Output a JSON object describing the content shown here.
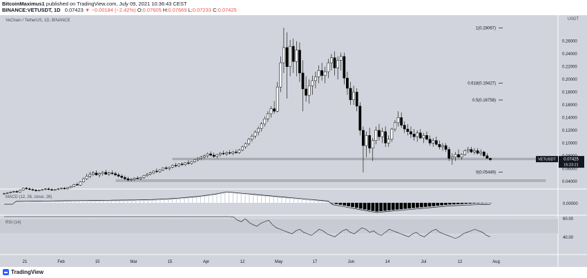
{
  "header": {
    "author": "BitcoinMaximus1",
    "published": "published on TradingView.com, July 09, 2021 10:36:43 CEST",
    "symbol": "BINANCE:VETUSDT, 1D",
    "price": "0.07423",
    "change": "▼ −0.00184 (−2.42%)",
    "o_label": "O:",
    "o": "0.07605",
    "h_label": "H:",
    "h": "0.07669",
    "l_label": "L:",
    "l": "0.07233",
    "c_label": "C:",
    "c": "0.07425"
  },
  "footer": {
    "logo_text": "TradingView"
  },
  "colors": {
    "background": "#d1d4dc",
    "candle_up": "#ffffff",
    "candle_down": "#000000",
    "support": "#b0b3ba"
  },
  "chart_data": {
    "type": "candlestick",
    "title": "VeChain / TetherUS, 1D, BINANCE",
    "unit_label": "USDT",
    "x_ticks": [
      "21",
      "Feb",
      "15",
      "Mar",
      "15",
      "Apr",
      "12",
      "May",
      "17",
      "Jun",
      "14",
      "Jul",
      "12",
      "Aug"
    ],
    "y_ticks": [
      "0.26000",
      "0.24000",
      "0.22000",
      "0.20000",
      "0.18000",
      "0.16000",
      "0.14000",
      "0.12000",
      "0.10000",
      "0.08000",
      "0.06000",
      "0.04000"
    ],
    "ylim": [
      0.03,
      0.29
    ],
    "fib_levels": [
      {
        "label": "1(0.28067)",
        "value": 0.28067
      },
      {
        "label": "0.618(0.19427)",
        "value": 0.19427
      },
      {
        "label": "0.5(0.16758)",
        "value": 0.16758
      },
      {
        "label": "0(0.05449)",
        "value": 0.05449
      }
    ],
    "support_zones": [
      [
        0.0735,
        0.0765
      ],
      [
        0.0395,
        0.0425
      ]
    ],
    "last_price": {
      "symbol": "VETUSDT",
      "value": "0.07425",
      "countdown": "15:23:21"
    },
    "candles": [
      {
        "o": 0.02,
        "h": 0.022,
        "l": 0.019,
        "c": 0.021
      },
      {
        "o": 0.021,
        "h": 0.023,
        "l": 0.02,
        "c": 0.022
      },
      {
        "o": 0.022,
        "h": 0.024,
        "l": 0.021,
        "c": 0.023
      },
      {
        "o": 0.023,
        "h": 0.025,
        "l": 0.022,
        "c": 0.024
      },
      {
        "o": 0.024,
        "h": 0.026,
        "l": 0.022,
        "c": 0.023
      },
      {
        "o": 0.023,
        "h": 0.027,
        "l": 0.022,
        "c": 0.026
      },
      {
        "o": 0.026,
        "h": 0.03,
        "l": 0.025,
        "c": 0.029
      },
      {
        "o": 0.029,
        "h": 0.031,
        "l": 0.027,
        "c": 0.028
      },
      {
        "o": 0.028,
        "h": 0.03,
        "l": 0.026,
        "c": 0.027
      },
      {
        "o": 0.027,
        "h": 0.029,
        "l": 0.025,
        "c": 0.026
      },
      {
        "o": 0.026,
        "h": 0.028,
        "l": 0.024,
        "c": 0.025
      },
      {
        "o": 0.025,
        "h": 0.027,
        "l": 0.024,
        "c": 0.026
      },
      {
        "o": 0.026,
        "h": 0.028,
        "l": 0.025,
        "c": 0.027
      },
      {
        "o": 0.027,
        "h": 0.029,
        "l": 0.026,
        "c": 0.028
      },
      {
        "o": 0.028,
        "h": 0.03,
        "l": 0.026,
        "c": 0.027
      },
      {
        "o": 0.027,
        "h": 0.029,
        "l": 0.025,
        "c": 0.026
      },
      {
        "o": 0.026,
        "h": 0.028,
        "l": 0.025,
        "c": 0.027
      },
      {
        "o": 0.027,
        "h": 0.029,
        "l": 0.026,
        "c": 0.028
      },
      {
        "o": 0.028,
        "h": 0.03,
        "l": 0.027,
        "c": 0.029
      },
      {
        "o": 0.029,
        "h": 0.031,
        "l": 0.027,
        "c": 0.028
      },
      {
        "o": 0.028,
        "h": 0.031,
        "l": 0.027,
        "c": 0.03
      },
      {
        "o": 0.03,
        "h": 0.033,
        "l": 0.029,
        "c": 0.032
      },
      {
        "o": 0.032,
        "h": 0.036,
        "l": 0.031,
        "c": 0.035
      },
      {
        "o": 0.035,
        "h": 0.038,
        "l": 0.033,
        "c": 0.034
      },
      {
        "o": 0.034,
        "h": 0.04,
        "l": 0.033,
        "c": 0.039
      },
      {
        "o": 0.039,
        "h": 0.046,
        "l": 0.038,
        "c": 0.044
      },
      {
        "o": 0.044,
        "h": 0.052,
        "l": 0.042,
        "c": 0.048
      },
      {
        "o": 0.048,
        "h": 0.055,
        "l": 0.045,
        "c": 0.051
      },
      {
        "o": 0.051,
        "h": 0.056,
        "l": 0.048,
        "c": 0.053
      },
      {
        "o": 0.053,
        "h": 0.057,
        "l": 0.049,
        "c": 0.05
      },
      {
        "o": 0.05,
        "h": 0.054,
        "l": 0.046,
        "c": 0.052
      },
      {
        "o": 0.052,
        "h": 0.056,
        "l": 0.049,
        "c": 0.054
      },
      {
        "o": 0.054,
        "h": 0.058,
        "l": 0.05,
        "c": 0.051
      },
      {
        "o": 0.051,
        "h": 0.055,
        "l": 0.048,
        "c": 0.053
      },
      {
        "o": 0.053,
        "h": 0.057,
        "l": 0.05,
        "c": 0.052
      },
      {
        "o": 0.052,
        "h": 0.055,
        "l": 0.048,
        "c": 0.05
      },
      {
        "o": 0.05,
        "h": 0.053,
        "l": 0.046,
        "c": 0.048
      },
      {
        "o": 0.048,
        "h": 0.051,
        "l": 0.044,
        "c": 0.046
      },
      {
        "o": 0.046,
        "h": 0.049,
        "l": 0.042,
        "c": 0.044
      },
      {
        "o": 0.044,
        "h": 0.047,
        "l": 0.04,
        "c": 0.042
      },
      {
        "o": 0.042,
        "h": 0.045,
        "l": 0.04,
        "c": 0.043
      },
      {
        "o": 0.043,
        "h": 0.046,
        "l": 0.041,
        "c": 0.045
      },
      {
        "o": 0.045,
        "h": 0.048,
        "l": 0.043,
        "c": 0.044
      },
      {
        "o": 0.044,
        "h": 0.047,
        "l": 0.042,
        "c": 0.046
      },
      {
        "o": 0.046,
        "h": 0.05,
        "l": 0.044,
        "c": 0.049
      },
      {
        "o": 0.049,
        "h": 0.053,
        "l": 0.047,
        "c": 0.051
      },
      {
        "o": 0.051,
        "h": 0.055,
        "l": 0.049,
        "c": 0.053
      },
      {
        "o": 0.053,
        "h": 0.057,
        "l": 0.051,
        "c": 0.056
      },
      {
        "o": 0.056,
        "h": 0.06,
        "l": 0.053,
        "c": 0.055
      },
      {
        "o": 0.055,
        "h": 0.059,
        "l": 0.053,
        "c": 0.058
      },
      {
        "o": 0.058,
        "h": 0.062,
        "l": 0.056,
        "c": 0.061
      },
      {
        "o": 0.061,
        "h": 0.064,
        "l": 0.058,
        "c": 0.06
      },
      {
        "o": 0.06,
        "h": 0.063,
        "l": 0.057,
        "c": 0.062
      },
      {
        "o": 0.062,
        "h": 0.066,
        "l": 0.06,
        "c": 0.065
      },
      {
        "o": 0.065,
        "h": 0.069,
        "l": 0.062,
        "c": 0.064
      },
      {
        "o": 0.064,
        "h": 0.068,
        "l": 0.062,
        "c": 0.067
      },
      {
        "o": 0.067,
        "h": 0.07,
        "l": 0.064,
        "c": 0.066
      },
      {
        "o": 0.066,
        "h": 0.07,
        "l": 0.064,
        "c": 0.069
      },
      {
        "o": 0.069,
        "h": 0.073,
        "l": 0.066,
        "c": 0.068
      },
      {
        "o": 0.068,
        "h": 0.072,
        "l": 0.066,
        "c": 0.071
      },
      {
        "o": 0.071,
        "h": 0.075,
        "l": 0.069,
        "c": 0.074
      },
      {
        "o": 0.074,
        "h": 0.078,
        "l": 0.071,
        "c": 0.076
      },
      {
        "o": 0.076,
        "h": 0.08,
        "l": 0.073,
        "c": 0.078
      },
      {
        "o": 0.078,
        "h": 0.082,
        "l": 0.075,
        "c": 0.08
      },
      {
        "o": 0.08,
        "h": 0.085,
        "l": 0.077,
        "c": 0.083
      },
      {
        "o": 0.083,
        "h": 0.087,
        "l": 0.079,
        "c": 0.081
      },
      {
        "o": 0.081,
        "h": 0.085,
        "l": 0.077,
        "c": 0.079
      },
      {
        "o": 0.079,
        "h": 0.083,
        "l": 0.076,
        "c": 0.082
      },
      {
        "o": 0.082,
        "h": 0.086,
        "l": 0.079,
        "c": 0.084
      },
      {
        "o": 0.084,
        "h": 0.088,
        "l": 0.081,
        "c": 0.083
      },
      {
        "o": 0.083,
        "h": 0.087,
        "l": 0.08,
        "c": 0.085
      },
      {
        "o": 0.085,
        "h": 0.089,
        "l": 0.082,
        "c": 0.084
      },
      {
        "o": 0.084,
        "h": 0.088,
        "l": 0.081,
        "c": 0.086
      },
      {
        "o": 0.086,
        "h": 0.09,
        "l": 0.083,
        "c": 0.085
      },
      {
        "o": 0.085,
        "h": 0.091,
        "l": 0.083,
        "c": 0.089
      },
      {
        "o": 0.089,
        "h": 0.096,
        "l": 0.087,
        "c": 0.094
      },
      {
        "o": 0.094,
        "h": 0.101,
        "l": 0.091,
        "c": 0.099
      },
      {
        "o": 0.099,
        "h": 0.108,
        "l": 0.096,
        "c": 0.106
      },
      {
        "o": 0.106,
        "h": 0.114,
        "l": 0.102,
        "c": 0.111
      },
      {
        "o": 0.111,
        "h": 0.12,
        "l": 0.107,
        "c": 0.117
      },
      {
        "o": 0.117,
        "h": 0.126,
        "l": 0.112,
        "c": 0.123
      },
      {
        "o": 0.123,
        "h": 0.133,
        "l": 0.118,
        "c": 0.13
      },
      {
        "o": 0.13,
        "h": 0.142,
        "l": 0.126,
        "c": 0.138
      },
      {
        "o": 0.138,
        "h": 0.15,
        "l": 0.133,
        "c": 0.146
      },
      {
        "o": 0.146,
        "h": 0.158,
        "l": 0.14,
        "c": 0.154
      },
      {
        "o": 0.154,
        "h": 0.166,
        "l": 0.146,
        "c": 0.15
      },
      {
        "o": 0.15,
        "h": 0.196,
        "l": 0.148,
        "c": 0.188
      },
      {
        "o": 0.188,
        "h": 0.236,
        "l": 0.18,
        "c": 0.226
      },
      {
        "o": 0.226,
        "h": 0.281,
        "l": 0.21,
        "c": 0.25
      },
      {
        "o": 0.25,
        "h": 0.274,
        "l": 0.17,
        "c": 0.22
      },
      {
        "o": 0.22,
        "h": 0.262,
        "l": 0.205,
        "c": 0.252
      },
      {
        "o": 0.252,
        "h": 0.264,
        "l": 0.21,
        "c": 0.228
      },
      {
        "o": 0.228,
        "h": 0.26,
        "l": 0.205,
        "c": 0.246
      },
      {
        "o": 0.246,
        "h": 0.258,
        "l": 0.196,
        "c": 0.21
      },
      {
        "o": 0.21,
        "h": 0.23,
        "l": 0.15,
        "c": 0.185
      },
      {
        "o": 0.185,
        "h": 0.205,
        "l": 0.165,
        "c": 0.175
      },
      {
        "o": 0.175,
        "h": 0.2,
        "l": 0.162,
        "c": 0.19
      },
      {
        "o": 0.19,
        "h": 0.206,
        "l": 0.176,
        "c": 0.198
      },
      {
        "o": 0.198,
        "h": 0.212,
        "l": 0.186,
        "c": 0.204
      },
      {
        "o": 0.204,
        "h": 0.222,
        "l": 0.194,
        "c": 0.214
      },
      {
        "o": 0.214,
        "h": 0.226,
        "l": 0.198,
        "c": 0.206
      },
      {
        "o": 0.206,
        "h": 0.22,
        "l": 0.194,
        "c": 0.212
      },
      {
        "o": 0.212,
        "h": 0.232,
        "l": 0.202,
        "c": 0.226
      },
      {
        "o": 0.226,
        "h": 0.24,
        "l": 0.214,
        "c": 0.234
      },
      {
        "o": 0.234,
        "h": 0.244,
        "l": 0.206,
        "c": 0.218
      },
      {
        "o": 0.218,
        "h": 0.236,
        "l": 0.2,
        "c": 0.23
      },
      {
        "o": 0.23,
        "h": 0.242,
        "l": 0.214,
        "c": 0.236
      },
      {
        "o": 0.236,
        "h": 0.242,
        "l": 0.192,
        "c": 0.202
      },
      {
        "o": 0.202,
        "h": 0.212,
        "l": 0.176,
        "c": 0.186
      },
      {
        "o": 0.186,
        "h": 0.196,
        "l": 0.16,
        "c": 0.168
      },
      {
        "o": 0.168,
        "h": 0.19,
        "l": 0.16,
        "c": 0.18
      },
      {
        "o": 0.18,
        "h": 0.186,
        "l": 0.15,
        "c": 0.158
      },
      {
        "o": 0.158,
        "h": 0.164,
        "l": 0.112,
        "c": 0.12
      },
      {
        "o": 0.12,
        "h": 0.126,
        "l": 0.054,
        "c": 0.096
      },
      {
        "o": 0.096,
        "h": 0.118,
        "l": 0.078,
        "c": 0.112
      },
      {
        "o": 0.112,
        "h": 0.124,
        "l": 0.084,
        "c": 0.092
      },
      {
        "o": 0.092,
        "h": 0.108,
        "l": 0.072,
        "c": 0.104
      },
      {
        "o": 0.104,
        "h": 0.126,
        "l": 0.098,
        "c": 0.12
      },
      {
        "o": 0.12,
        "h": 0.13,
        "l": 0.104,
        "c": 0.11
      },
      {
        "o": 0.11,
        "h": 0.124,
        "l": 0.1,
        "c": 0.118
      },
      {
        "o": 0.118,
        "h": 0.126,
        "l": 0.094,
        "c": 0.1
      },
      {
        "o": 0.1,
        "h": 0.112,
        "l": 0.094,
        "c": 0.106
      },
      {
        "o": 0.106,
        "h": 0.124,
        "l": 0.102,
        "c": 0.122
      },
      {
        "o": 0.122,
        "h": 0.136,
        "l": 0.118,
        "c": 0.132
      },
      {
        "o": 0.132,
        "h": 0.15,
        "l": 0.126,
        "c": 0.14
      },
      {
        "o": 0.14,
        "h": 0.148,
        "l": 0.124,
        "c": 0.128
      },
      {
        "o": 0.128,
        "h": 0.134,
        "l": 0.116,
        "c": 0.122
      },
      {
        "o": 0.122,
        "h": 0.13,
        "l": 0.112,
        "c": 0.118
      },
      {
        "o": 0.118,
        "h": 0.126,
        "l": 0.108,
        "c": 0.114
      },
      {
        "o": 0.114,
        "h": 0.122,
        "l": 0.104,
        "c": 0.11
      },
      {
        "o": 0.11,
        "h": 0.12,
        "l": 0.102,
        "c": 0.116
      },
      {
        "o": 0.116,
        "h": 0.122,
        "l": 0.106,
        "c": 0.108
      },
      {
        "o": 0.108,
        "h": 0.116,
        "l": 0.1,
        "c": 0.112
      },
      {
        "o": 0.112,
        "h": 0.118,
        "l": 0.104,
        "c": 0.106
      },
      {
        "o": 0.106,
        "h": 0.112,
        "l": 0.096,
        "c": 0.1
      },
      {
        "o": 0.1,
        "h": 0.108,
        "l": 0.094,
        "c": 0.104
      },
      {
        "o": 0.104,
        "h": 0.11,
        "l": 0.096,
        "c": 0.098
      },
      {
        "o": 0.098,
        "h": 0.104,
        "l": 0.09,
        "c": 0.094
      },
      {
        "o": 0.094,
        "h": 0.1,
        "l": 0.088,
        "c": 0.096
      },
      {
        "o": 0.096,
        "h": 0.1,
        "l": 0.086,
        "c": 0.09
      },
      {
        "o": 0.09,
        "h": 0.094,
        "l": 0.072,
        "c": 0.076
      },
      {
        "o": 0.076,
        "h": 0.084,
        "l": 0.066,
        "c": 0.078
      },
      {
        "o": 0.078,
        "h": 0.086,
        "l": 0.072,
        "c": 0.082
      },
      {
        "o": 0.082,
        "h": 0.09,
        "l": 0.076,
        "c": 0.078
      },
      {
        "o": 0.078,
        "h": 0.084,
        "l": 0.074,
        "c": 0.082
      },
      {
        "o": 0.082,
        "h": 0.09,
        "l": 0.08,
        "c": 0.088
      },
      {
        "o": 0.088,
        "h": 0.094,
        "l": 0.084,
        "c": 0.09
      },
      {
        "o": 0.09,
        "h": 0.094,
        "l": 0.084,
        "c": 0.086
      },
      {
        "o": 0.086,
        "h": 0.092,
        "l": 0.082,
        "c": 0.088
      },
      {
        "o": 0.088,
        "h": 0.092,
        "l": 0.082,
        "c": 0.084
      },
      {
        "o": 0.084,
        "h": 0.09,
        "l": 0.08,
        "c": 0.086
      },
      {
        "o": 0.086,
        "h": 0.088,
        "l": 0.078,
        "c": 0.08
      },
      {
        "o": 0.08,
        "h": 0.084,
        "l": 0.076,
        "c": 0.076
      },
      {
        "o": 0.076,
        "h": 0.077,
        "l": 0.072,
        "c": 0.074
      }
    ],
    "macd": {
      "label": "MACD (12, 26, close, 26)",
      "tick": "0.00000",
      "histogram": [
        0,
        0,
        0,
        0.01,
        0.01,
        0.02,
        0.02,
        0.03,
        0.03,
        0.04,
        0.05,
        0.05,
        0.06,
        0.07,
        0.07,
        0.08,
        0.08,
        0.09,
        0.09,
        0.1,
        0.1,
        0.11,
        0.11,
        0.12,
        0.12,
        0.13,
        0.13,
        0.14,
        0.14,
        0.15,
        0.15,
        0.16,
        0.16,
        0.17,
        0.18,
        0.19,
        0.2,
        0.22,
        0.24,
        0.26,
        0.28,
        0.3,
        0.33,
        0.36,
        0.4,
        0.44,
        0.48,
        0.52,
        0.56,
        0.62,
        0.68,
        0.74,
        0.8,
        0.88,
        0.96,
        1.04,
        1.0,
        0.96,
        0.92,
        0.88,
        0.84,
        0.8,
        0.76,
        0.72,
        0.68,
        0.64,
        0.6,
        0.56,
        0.52,
        0.48,
        0.44,
        0.4,
        0.36,
        0.32,
        0.28,
        0.24,
        0.2,
        0.16,
        0.12,
        0.08,
        0.04,
        -0.04,
        -0.12,
        -0.2,
        -0.28,
        -0.36,
        -0.44,
        -0.52,
        -0.6,
        -0.68,
        -0.76,
        -0.84,
        -0.9,
        -0.86,
        -0.82,
        -0.78,
        -0.74,
        -0.7,
        -0.66,
        -0.62,
        -0.58,
        -0.54,
        -0.5,
        -0.46,
        -0.42,
        -0.38,
        -0.34,
        -0.3,
        -0.26,
        -0.22,
        -0.18,
        -0.16,
        -0.14,
        -0.12,
        -0.1,
        -0.08,
        -0.06,
        -0.05,
        -0.04,
        -0.03,
        -0.02
      ]
    },
    "rsi": {
      "label": "RSI (14)",
      "ticks": [
        "60.00",
        "40.00"
      ],
      "values": [
        78,
        76,
        80,
        74,
        72,
        77,
        79,
        73,
        70,
        75,
        78,
        72,
        74,
        80,
        76,
        71,
        75,
        79,
        73,
        77,
        80,
        75,
        72,
        78,
        76,
        74,
        79,
        73,
        77,
        80,
        75,
        72,
        76,
        79,
        74,
        71,
        70,
        68,
        72,
        66,
        70,
        75,
        78,
        74,
        76,
        80,
        82,
        78,
        74,
        70,
        68,
        72,
        76,
        79,
        80,
        78,
        74,
        70,
        66,
        62,
        58,
        56,
        60,
        55,
        52,
        50,
        54,
        56,
        58,
        52,
        48,
        46,
        44,
        42,
        40,
        44,
        46,
        42,
        40,
        38,
        42,
        46,
        44,
        40,
        38,
        36,
        40,
        44,
        46,
        42,
        40,
        44,
        48,
        46,
        42,
        44,
        40,
        38,
        42,
        46,
        44,
        42,
        40,
        38,
        36,
        40,
        42,
        38,
        36,
        40,
        44,
        46,
        42,
        40,
        38,
        36,
        34,
        36,
        40,
        42,
        44,
        46,
        44,
        42,
        38,
        36
      ]
    }
  }
}
